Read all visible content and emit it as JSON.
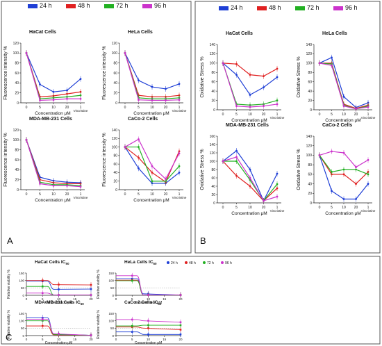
{
  "panels": {
    "A": {
      "letter": "A",
      "legend": [
        {
          "label": "24 h",
          "color": "#1f3fd6"
        },
        {
          "label": "48 h",
          "color": "#e02020"
        },
        {
          "label": "72 h",
          "color": "#22b022"
        },
        {
          "label": "96 h",
          "color": "#cc33cc"
        }
      ]
    },
    "B": {
      "letter": "B",
      "legend": [
        {
          "label": "24 h",
          "color": "#1f3fd6"
        },
        {
          "label": "48 h",
          "color": "#e02020"
        },
        {
          "label": "72 h",
          "color": "#22b022"
        },
        {
          "label": "96 h",
          "color": "#cc33cc"
        }
      ]
    },
    "C": {
      "letter": "C",
      "legend": [
        {
          "label": "24 h",
          "color": "#1f3fd6"
        },
        {
          "label": "48 h",
          "color": "#e02020"
        },
        {
          "label": "72 h",
          "color": "#22b022"
        },
        {
          "label": "96 h",
          "color": "#cc33cc"
        }
      ]
    }
  },
  "chart_data": [
    {
      "panel": "A",
      "title": "HaCat Cells",
      "type": "line",
      "ylabel": "Fluorescence intensity %",
      "xlabel": "Concentration μM",
      "categories": [
        "0",
        "5",
        "10",
        "20",
        "1"
      ],
      "xnote": "Vincristine",
      "ylim": [
        0,
        120
      ],
      "yticks": [
        0,
        20,
        40,
        60,
        80,
        100,
        120
      ],
      "series": [
        {
          "name": "24 h",
          "values": [
            100,
            37,
            22,
            25,
            48
          ]
        },
        {
          "name": "48 h",
          "values": [
            100,
            12,
            14,
            18,
            22
          ]
        },
        {
          "name": "72 h",
          "values": [
            100,
            8,
            10,
            12,
            15
          ]
        },
        {
          "name": "96 h",
          "values": [
            100,
            5,
            6,
            8,
            8
          ]
        }
      ]
    },
    {
      "panel": "A",
      "title": "HeLa Cells",
      "type": "line",
      "ylabel": "Fluorescence intensity %",
      "xlabel": "Concentration μM",
      "categories": [
        "0",
        "5",
        "10",
        "20",
        "1"
      ],
      "xnote": "Vincristine",
      "ylim": [
        0,
        120
      ],
      "yticks": [
        0,
        20,
        40,
        60,
        80,
        100,
        120
      ],
      "series": [
        {
          "name": "24 h",
          "values": [
            100,
            45,
            32,
            28,
            38
          ]
        },
        {
          "name": "48 h",
          "values": [
            100,
            15,
            12,
            12,
            15
          ]
        },
        {
          "name": "72 h",
          "values": [
            100,
            10,
            8,
            8,
            10
          ]
        },
        {
          "name": "96 h",
          "values": [
            100,
            6,
            5,
            5,
            6
          ]
        }
      ]
    },
    {
      "panel": "A",
      "title": "MDA-MB-231 Cells",
      "type": "line",
      "ylabel": "Fluorescence intensity %",
      "xlabel": "Concentration μM",
      "categories": [
        "0",
        "5",
        "10",
        "20",
        "1"
      ],
      "xnote": "Vincristine",
      "ylim": [
        0,
        120
      ],
      "yticks": [
        0,
        20,
        40,
        60,
        80,
        100,
        120
      ],
      "series": [
        {
          "name": "24 h",
          "values": [
            100,
            25,
            18,
            15,
            14
          ]
        },
        {
          "name": "48 h",
          "values": [
            100,
            20,
            14,
            12,
            12
          ]
        },
        {
          "name": "72 h",
          "values": [
            100,
            15,
            10,
            10,
            8
          ]
        },
        {
          "name": "96 h",
          "values": [
            100,
            12,
            8,
            8,
            6
          ]
        }
      ]
    },
    {
      "panel": "A",
      "title": "CaCo-2 Cells",
      "type": "line",
      "ylabel": "Fluorescence intensity %",
      "xlabel": "Concentration μM",
      "categories": [
        "0",
        "5",
        "10",
        "20",
        "1"
      ],
      "xnote": "Vincristine",
      "ylim": [
        0,
        140
      ],
      "yticks": [
        0,
        20,
        40,
        60,
        80,
        100,
        120,
        140
      ],
      "series": [
        {
          "name": "24 h",
          "values": [
            100,
            50,
            15,
            15,
            40
          ]
        },
        {
          "name": "48 h",
          "values": [
            100,
            75,
            40,
            18,
            90
          ]
        },
        {
          "name": "72 h",
          "values": [
            100,
            100,
            20,
            20,
            55
          ]
        },
        {
          "name": "96 h",
          "values": [
            100,
            118,
            55,
            25,
            85
          ]
        }
      ]
    },
    {
      "panel": "B",
      "title": "HaCat Cells",
      "type": "line",
      "ylabel": "Oxidative Stress %",
      "xlabel": "Concentration μM",
      "categories": [
        "0",
        "5",
        "10",
        "20",
        "1"
      ],
      "xnote": "Vincristine",
      "ylim": [
        0,
        140
      ],
      "yticks": [
        0,
        20,
        40,
        60,
        80,
        100,
        120,
        140
      ],
      "series": [
        {
          "name": "24 h",
          "values": [
            100,
            75,
            32,
            48,
            70
          ]
        },
        {
          "name": "48 h",
          "values": [
            100,
            98,
            75,
            72,
            88
          ]
        },
        {
          "name": "72 h",
          "values": [
            100,
            12,
            10,
            12,
            20
          ]
        },
        {
          "name": "96 h",
          "values": [
            100,
            8,
            6,
            8,
            12
          ]
        }
      ]
    },
    {
      "panel": "B",
      "title": "HeLa Cells",
      "type": "line",
      "ylabel": "Oxidative Stress %",
      "xlabel": "Concentration μM",
      "categories": [
        "0",
        "5",
        "10",
        "20",
        "1"
      ],
      "xnote": "Vincristine",
      "ylim": [
        0,
        140
      ],
      "yticks": [
        0,
        20,
        40,
        60,
        80,
        100,
        120,
        140
      ],
      "series": [
        {
          "name": "24 h",
          "values": [
            100,
            112,
            28,
            5,
            15
          ]
        },
        {
          "name": "48 h",
          "values": [
            100,
            100,
            12,
            3,
            10
          ]
        },
        {
          "name": "72 h",
          "values": [
            100,
            98,
            10,
            2,
            8
          ]
        },
        {
          "name": "96 h",
          "values": [
            100,
            95,
            8,
            2,
            6
          ]
        }
      ]
    },
    {
      "panel": "B",
      "title": "MDA-MB-231 Cells",
      "type": "line",
      "ylabel": "Oxidative Stress %",
      "xlabel": "Concentration μM",
      "categories": [
        "0",
        "5",
        "10",
        "20",
        "1"
      ],
      "xnote": "Vincristine",
      "ylim": [
        0,
        160
      ],
      "yticks": [
        0,
        20,
        40,
        60,
        80,
        100,
        120,
        140,
        160
      ],
      "series": [
        {
          "name": "24 h",
          "values": [
            100,
            125,
            80,
            5,
            70
          ]
        },
        {
          "name": "48 h",
          "values": [
            100,
            65,
            40,
            5,
            35
          ]
        },
        {
          "name": "72 h",
          "values": [
            100,
            100,
            55,
            5,
            45
          ]
        },
        {
          "name": "96 h",
          "values": [
            100,
            110,
            60,
            5,
            15
          ]
        }
      ]
    },
    {
      "panel": "B",
      "title": "CaCo-2 Cells",
      "type": "line",
      "ylabel": "Oxidative Stress %",
      "xlabel": "Concentration μM",
      "categories": [
        "0",
        "5",
        "10",
        "20",
        "1"
      ],
      "xnote": "Vincristine",
      "ylim": [
        0,
        140
      ],
      "yticks": [
        0,
        20,
        40,
        60,
        80,
        100,
        120,
        140
      ],
      "series": [
        {
          "name": "24 h",
          "values": [
            100,
            25,
            8,
            8,
            40
          ]
        },
        {
          "name": "48 h",
          "values": [
            100,
            60,
            60,
            40,
            65
          ]
        },
        {
          "name": "72 h",
          "values": [
            100,
            65,
            70,
            70,
            60
          ]
        },
        {
          "name": "96 h",
          "values": [
            100,
            108,
            105,
            75,
            90
          ]
        }
      ]
    },
    {
      "panel": "C",
      "title": "HaCat Cells IC",
      "title_sub": "50",
      "type": "scatter",
      "ylabel": "Relative viability %",
      "xlabel": "Concentration μM",
      "xlim": [
        0,
        20
      ],
      "xticks": [
        0,
        5,
        10,
        15,
        20
      ],
      "ylim": [
        0,
        150
      ],
      "yticks": [
        0,
        50,
        100,
        150
      ],
      "ref_line": 50,
      "series": [
        {
          "name": "24 h",
          "x": [
            5,
            10,
            20
          ],
          "y": [
            95,
            40,
            42
          ]
        },
        {
          "name": "48 h",
          "x": [
            5,
            10,
            20
          ],
          "y": [
            100,
            72,
            70
          ]
        },
        {
          "name": "72 h",
          "x": [
            5,
            10,
            20
          ],
          "y": [
            60,
            2,
            2
          ]
        },
        {
          "name": "96 h",
          "x": [
            5,
            10,
            20
          ],
          "y": [
            15,
            2,
            2
          ]
        }
      ]
    },
    {
      "panel": "C",
      "title": "HeLa Cells IC",
      "title_sub": "50",
      "type": "scatter",
      "ylabel": "Relative viability %",
      "xlabel": "Concentration μM",
      "xlim": [
        0,
        20
      ],
      "xticks": [
        0,
        5,
        10,
        15,
        20
      ],
      "ylim": [
        0,
        150
      ],
      "yticks": [
        0,
        50,
        100,
        150
      ],
      "ref_line": 50,
      "series": [
        {
          "name": "24 h",
          "x": [
            5,
            10,
            20
          ],
          "y": [
            112,
            10,
            2
          ]
        },
        {
          "name": "48 h",
          "x": [
            5,
            10,
            20
          ],
          "y": [
            102,
            2,
            2
          ]
        },
        {
          "name": "72 h",
          "x": [
            5,
            10,
            20
          ],
          "y": [
            98,
            2,
            2
          ]
        },
        {
          "name": "96 h",
          "x": [
            5,
            10,
            20
          ],
          "y": [
            132,
            2,
            2
          ]
        }
      ]
    },
    {
      "panel": "C",
      "title": "MDA-MB-231 Cells IC",
      "title_sub": "50",
      "type": "scatter",
      "ylabel": "Relative viability %",
      "xlabel": "Concentration μM",
      "xlim": [
        0,
        20
      ],
      "xticks": [
        0,
        5,
        10,
        15,
        20
      ],
      "ylim": [
        0,
        150
      ],
      "yticks": [
        0,
        50,
        100,
        150
      ],
      "ref_line": 50,
      "series": [
        {
          "name": "24 h",
          "x": [
            5,
            10,
            20
          ],
          "y": [
            120,
            10,
            2
          ]
        },
        {
          "name": "48 h",
          "x": [
            5,
            10,
            20
          ],
          "y": [
            65,
            5,
            2
          ]
        },
        {
          "name": "72 h",
          "x": [
            5,
            10,
            20
          ],
          "y": [
            100,
            8,
            2
          ]
        },
        {
          "name": "96 h",
          "x": [
            5,
            10,
            20
          ],
          "y": [
            110,
            12,
            2
          ]
        }
      ]
    },
    {
      "panel": "C",
      "title": "CaCo-2 Cells IC",
      "title_sub": "50",
      "type": "scatter",
      "ylabel": "Relative viability %",
      "xlabel": "Concentration μM",
      "xlim": [
        0,
        20
      ],
      "xticks": [
        0,
        5,
        10,
        15,
        20
      ],
      "ylim": [
        0,
        150
      ],
      "yticks": [
        0,
        50,
        100,
        150
      ],
      "ref_line": 50,
      "series": [
        {
          "name": "24 h",
          "x": [
            5,
            10,
            20
          ],
          "y": [
            25,
            8,
            8
          ]
        },
        {
          "name": "48 h",
          "x": [
            5,
            10,
            20
          ],
          "y": [
            58,
            50,
            40
          ]
        },
        {
          "name": "72 h",
          "x": [
            5,
            10,
            20
          ],
          "y": [
            65,
            70,
            70
          ]
        },
        {
          "name": "96 h",
          "x": [
            5,
            10,
            20
          ],
          "y": [
            108,
            100,
            90
          ]
        }
      ]
    }
  ]
}
